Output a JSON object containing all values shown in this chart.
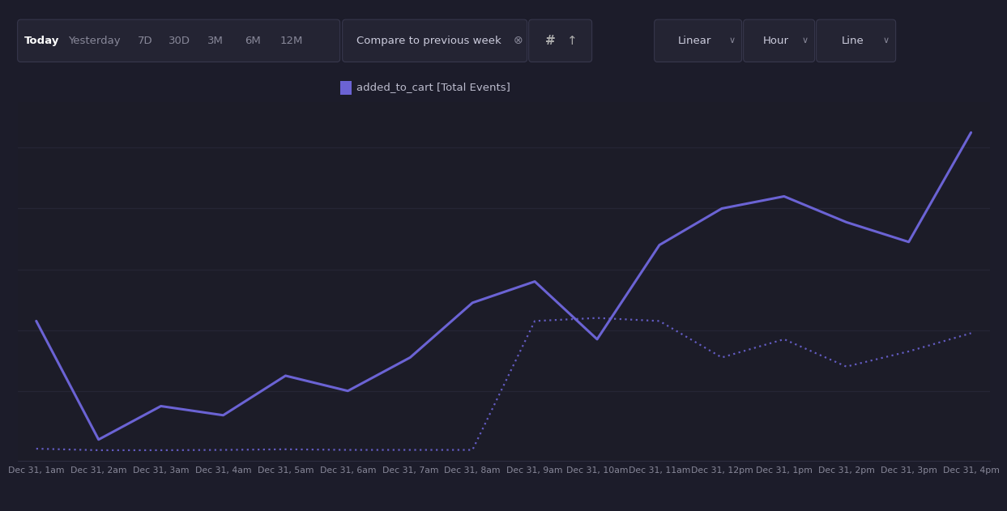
{
  "bg_color": "#1c1c2a",
  "chart_bg": "#1c1c28",
  "line_color": "#6b63d4",
  "grid_color": "#28283a",
  "text_color": "#888899",
  "x_labels": [
    "Dec 31, 1am",
    "Dec 31, 2am",
    "Dec 31, 3am",
    "Dec 31, 4am",
    "Dec 31, 5am",
    "Dec 31, 6am",
    "Dec 31, 7am",
    "Dec 31, 8am",
    "Dec 31, 9am",
    "Dec 31, 10am",
    "Dec 31, 11am",
    "Dec 31, 12pm",
    "Dec 31, 1pm",
    "Dec 31, 2pm",
    "Dec 31, 3pm",
    "Dec 31, 4pm"
  ],
  "solid_y": [
    430,
    40,
    150,
    120,
    250,
    200,
    310,
    490,
    560,
    370,
    680,
    800,
    840,
    755,
    690,
    1050
  ],
  "dotted_y": [
    10,
    5,
    5,
    6,
    8,
    6,
    6,
    6,
    430,
    440,
    430,
    310,
    370,
    280,
    330,
    390
  ],
  "legend_label": "added_to_cart [Total Events]",
  "header_buttons": [
    "Today",
    "Yesterday",
    "7D",
    "30D",
    "3M",
    "6M",
    "12M"
  ],
  "compare_label": "Compare to previous week",
  "right_buttons": [
    "Linear",
    "Hour",
    "Line"
  ],
  "ylim_max": 1150,
  "grid_lines_y": [
    200,
    400,
    600,
    800,
    1000
  ]
}
